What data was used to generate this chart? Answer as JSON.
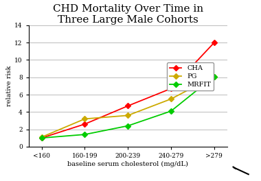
{
  "title": "CHD Mortality Over Time in\nThree Large Male Cohorts",
  "xlabel": "baseline serum cholesterol (mg/dL)",
  "ylabel": "relative risk",
  "x_labels": [
    "<160",
    "160-199",
    "200-239",
    "240-279",
    ">279"
  ],
  "series": {
    "CHA": [
      1.0,
      2.6,
      4.7,
      6.7,
      12.0
    ],
    "PG": [
      1.1,
      3.2,
      3.6,
      5.5,
      8.1
    ],
    "MRFIT": [
      1.0,
      1.4,
      2.4,
      4.1,
      8.1
    ]
  },
  "colors": {
    "CHA": "#ff0000",
    "PG": "#ccaa00",
    "MRFIT": "#00cc00"
  },
  "ylim": [
    0,
    14
  ],
  "yticks": [
    0,
    2,
    4,
    6,
    8,
    10,
    12,
    14
  ],
  "title_fontsize": 11,
  "axis_label_fontsize": 7,
  "tick_fontsize": 6.5,
  "legend_fontsize": 7,
  "background_color": "#ffffff",
  "grid_color": "#bbbbbb"
}
